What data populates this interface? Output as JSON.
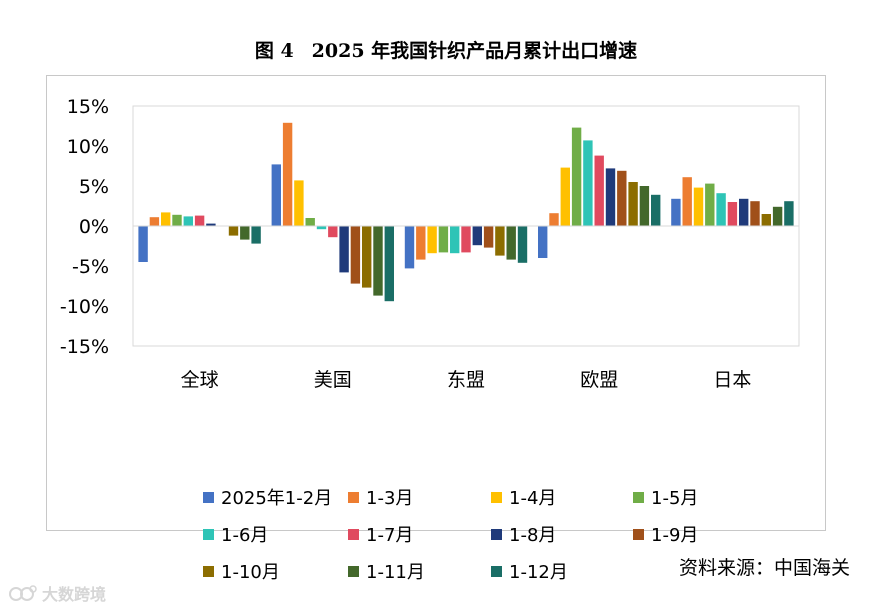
{
  "header": {
    "figure_label": "图 4",
    "title": "2025 年我国针织产品月累计出口增速"
  },
  "source_note": "资料来源：中国海关",
  "watermark": "大数跨境",
  "chart_data": {
    "type": "bar",
    "title": "2025 年我国针织产品月累计出口增速",
    "xlabel": "",
    "ylabel": "",
    "ylim": [
      -15,
      15
    ],
    "yticks": [
      15,
      10,
      5,
      0,
      -5,
      -10,
      -15
    ],
    "ytick_labels": [
      "15%",
      "10%",
      "5%",
      "0%",
      "-5%",
      "-10%",
      "-15%"
    ],
    "grid": false,
    "legend_position": "bottom",
    "categories": [
      "全球",
      "美国",
      "东盟",
      "欧盟",
      "日本"
    ],
    "series": [
      {
        "name": "2025年1-2月",
        "color": "#4472C4",
        "values": [
          -4.5,
          7.7,
          -5.3,
          -4.0,
          3.4
        ]
      },
      {
        "name": "1-3月",
        "color": "#ED7D31",
        "values": [
          1.1,
          12.9,
          -4.2,
          1.6,
          6.1
        ]
      },
      {
        "name": "1-4月",
        "color": "#FFC000",
        "values": [
          1.7,
          5.7,
          -3.4,
          7.3,
          4.8
        ]
      },
      {
        "name": "1-5月",
        "color": "#70AD47",
        "values": [
          1.4,
          1.0,
          -3.3,
          12.3,
          5.3
        ]
      },
      {
        "name": "1-6月",
        "color": "#2EC4B6",
        "values": [
          1.2,
          -0.4,
          -3.4,
          10.7,
          4.1
        ]
      },
      {
        "name": "1-7月",
        "color": "#E04A5F",
        "values": [
          1.3,
          -1.4,
          -3.3,
          8.8,
          3.0
        ]
      },
      {
        "name": "1-8月",
        "color": "#1F3A7A",
        "values": [
          0.3,
          -5.8,
          -2.4,
          7.2,
          3.4
        ]
      },
      {
        "name": "1-9月",
        "color": "#A0501A",
        "values": [
          0.0,
          -7.2,
          -2.7,
          6.9,
          3.1
        ]
      },
      {
        "name": "1-10月",
        "color": "#8C6D00",
        "values": [
          -1.2,
          -7.7,
          -3.7,
          5.5,
          1.5
        ]
      },
      {
        "name": "1-11月",
        "color": "#43682B",
        "values": [
          -1.7,
          -8.7,
          -4.2,
          5.0,
          2.4
        ]
      },
      {
        "name": "1-12月",
        "color": "#1A6E66",
        "values": [
          -2.2,
          -9.4,
          -4.6,
          3.9,
          3.1
        ]
      }
    ]
  }
}
